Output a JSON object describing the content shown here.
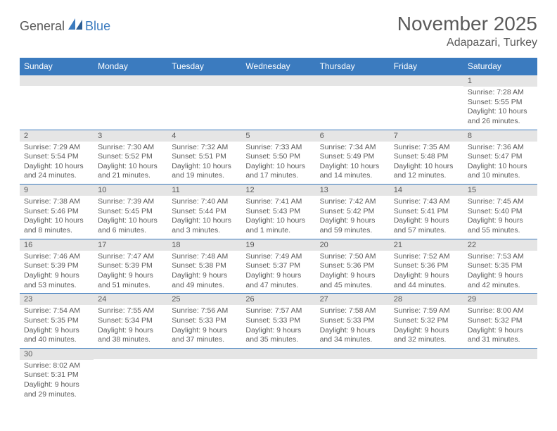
{
  "logo": {
    "part1": "General",
    "part2": "Blue"
  },
  "title": "November 2025",
  "location": "Adapazari, Turkey",
  "colors": {
    "header_bg": "#3b7bbf",
    "header_text": "#ffffff",
    "daynum_bg": "#e5e5e5",
    "cell_border": "#3b7bbf",
    "text": "#5a5a5a",
    "background": "#ffffff"
  },
  "day_headers": [
    "Sunday",
    "Monday",
    "Tuesday",
    "Wednesday",
    "Thursday",
    "Friday",
    "Saturday"
  ],
  "weeks": [
    [
      {
        "n": "",
        "sr": "",
        "ss": "",
        "dl": ""
      },
      {
        "n": "",
        "sr": "",
        "ss": "",
        "dl": ""
      },
      {
        "n": "",
        "sr": "",
        "ss": "",
        "dl": ""
      },
      {
        "n": "",
        "sr": "",
        "ss": "",
        "dl": ""
      },
      {
        "n": "",
        "sr": "",
        "ss": "",
        "dl": ""
      },
      {
        "n": "",
        "sr": "",
        "ss": "",
        "dl": ""
      },
      {
        "n": "1",
        "sr": "Sunrise: 7:28 AM",
        "ss": "Sunset: 5:55 PM",
        "dl": "Daylight: 10 hours and 26 minutes."
      }
    ],
    [
      {
        "n": "2",
        "sr": "Sunrise: 7:29 AM",
        "ss": "Sunset: 5:54 PM",
        "dl": "Daylight: 10 hours and 24 minutes."
      },
      {
        "n": "3",
        "sr": "Sunrise: 7:30 AM",
        "ss": "Sunset: 5:52 PM",
        "dl": "Daylight: 10 hours and 21 minutes."
      },
      {
        "n": "4",
        "sr": "Sunrise: 7:32 AM",
        "ss": "Sunset: 5:51 PM",
        "dl": "Daylight: 10 hours and 19 minutes."
      },
      {
        "n": "5",
        "sr": "Sunrise: 7:33 AM",
        "ss": "Sunset: 5:50 PM",
        "dl": "Daylight: 10 hours and 17 minutes."
      },
      {
        "n": "6",
        "sr": "Sunrise: 7:34 AM",
        "ss": "Sunset: 5:49 PM",
        "dl": "Daylight: 10 hours and 14 minutes."
      },
      {
        "n": "7",
        "sr": "Sunrise: 7:35 AM",
        "ss": "Sunset: 5:48 PM",
        "dl": "Daylight: 10 hours and 12 minutes."
      },
      {
        "n": "8",
        "sr": "Sunrise: 7:36 AM",
        "ss": "Sunset: 5:47 PM",
        "dl": "Daylight: 10 hours and 10 minutes."
      }
    ],
    [
      {
        "n": "9",
        "sr": "Sunrise: 7:38 AM",
        "ss": "Sunset: 5:46 PM",
        "dl": "Daylight: 10 hours and 8 minutes."
      },
      {
        "n": "10",
        "sr": "Sunrise: 7:39 AM",
        "ss": "Sunset: 5:45 PM",
        "dl": "Daylight: 10 hours and 6 minutes."
      },
      {
        "n": "11",
        "sr": "Sunrise: 7:40 AM",
        "ss": "Sunset: 5:44 PM",
        "dl": "Daylight: 10 hours and 3 minutes."
      },
      {
        "n": "12",
        "sr": "Sunrise: 7:41 AM",
        "ss": "Sunset: 5:43 PM",
        "dl": "Daylight: 10 hours and 1 minute."
      },
      {
        "n": "13",
        "sr": "Sunrise: 7:42 AM",
        "ss": "Sunset: 5:42 PM",
        "dl": "Daylight: 9 hours and 59 minutes."
      },
      {
        "n": "14",
        "sr": "Sunrise: 7:43 AM",
        "ss": "Sunset: 5:41 PM",
        "dl": "Daylight: 9 hours and 57 minutes."
      },
      {
        "n": "15",
        "sr": "Sunrise: 7:45 AM",
        "ss": "Sunset: 5:40 PM",
        "dl": "Daylight: 9 hours and 55 minutes."
      }
    ],
    [
      {
        "n": "16",
        "sr": "Sunrise: 7:46 AM",
        "ss": "Sunset: 5:39 PM",
        "dl": "Daylight: 9 hours and 53 minutes."
      },
      {
        "n": "17",
        "sr": "Sunrise: 7:47 AM",
        "ss": "Sunset: 5:39 PM",
        "dl": "Daylight: 9 hours and 51 minutes."
      },
      {
        "n": "18",
        "sr": "Sunrise: 7:48 AM",
        "ss": "Sunset: 5:38 PM",
        "dl": "Daylight: 9 hours and 49 minutes."
      },
      {
        "n": "19",
        "sr": "Sunrise: 7:49 AM",
        "ss": "Sunset: 5:37 PM",
        "dl": "Daylight: 9 hours and 47 minutes."
      },
      {
        "n": "20",
        "sr": "Sunrise: 7:50 AM",
        "ss": "Sunset: 5:36 PM",
        "dl": "Daylight: 9 hours and 45 minutes."
      },
      {
        "n": "21",
        "sr": "Sunrise: 7:52 AM",
        "ss": "Sunset: 5:36 PM",
        "dl": "Daylight: 9 hours and 44 minutes."
      },
      {
        "n": "22",
        "sr": "Sunrise: 7:53 AM",
        "ss": "Sunset: 5:35 PM",
        "dl": "Daylight: 9 hours and 42 minutes."
      }
    ],
    [
      {
        "n": "23",
        "sr": "Sunrise: 7:54 AM",
        "ss": "Sunset: 5:35 PM",
        "dl": "Daylight: 9 hours and 40 minutes."
      },
      {
        "n": "24",
        "sr": "Sunrise: 7:55 AM",
        "ss": "Sunset: 5:34 PM",
        "dl": "Daylight: 9 hours and 38 minutes."
      },
      {
        "n": "25",
        "sr": "Sunrise: 7:56 AM",
        "ss": "Sunset: 5:33 PM",
        "dl": "Daylight: 9 hours and 37 minutes."
      },
      {
        "n": "26",
        "sr": "Sunrise: 7:57 AM",
        "ss": "Sunset: 5:33 PM",
        "dl": "Daylight: 9 hours and 35 minutes."
      },
      {
        "n": "27",
        "sr": "Sunrise: 7:58 AM",
        "ss": "Sunset: 5:33 PM",
        "dl": "Daylight: 9 hours and 34 minutes."
      },
      {
        "n": "28",
        "sr": "Sunrise: 7:59 AM",
        "ss": "Sunset: 5:32 PM",
        "dl": "Daylight: 9 hours and 32 minutes."
      },
      {
        "n": "29",
        "sr": "Sunrise: 8:00 AM",
        "ss": "Sunset: 5:32 PM",
        "dl": "Daylight: 9 hours and 31 minutes."
      }
    ],
    [
      {
        "n": "30",
        "sr": "Sunrise: 8:02 AM",
        "ss": "Sunset: 5:31 PM",
        "dl": "Daylight: 9 hours and 29 minutes."
      },
      {
        "n": "",
        "sr": "",
        "ss": "",
        "dl": ""
      },
      {
        "n": "",
        "sr": "",
        "ss": "",
        "dl": ""
      },
      {
        "n": "",
        "sr": "",
        "ss": "",
        "dl": ""
      },
      {
        "n": "",
        "sr": "",
        "ss": "",
        "dl": ""
      },
      {
        "n": "",
        "sr": "",
        "ss": "",
        "dl": ""
      },
      {
        "n": "",
        "sr": "",
        "ss": "",
        "dl": ""
      }
    ]
  ]
}
